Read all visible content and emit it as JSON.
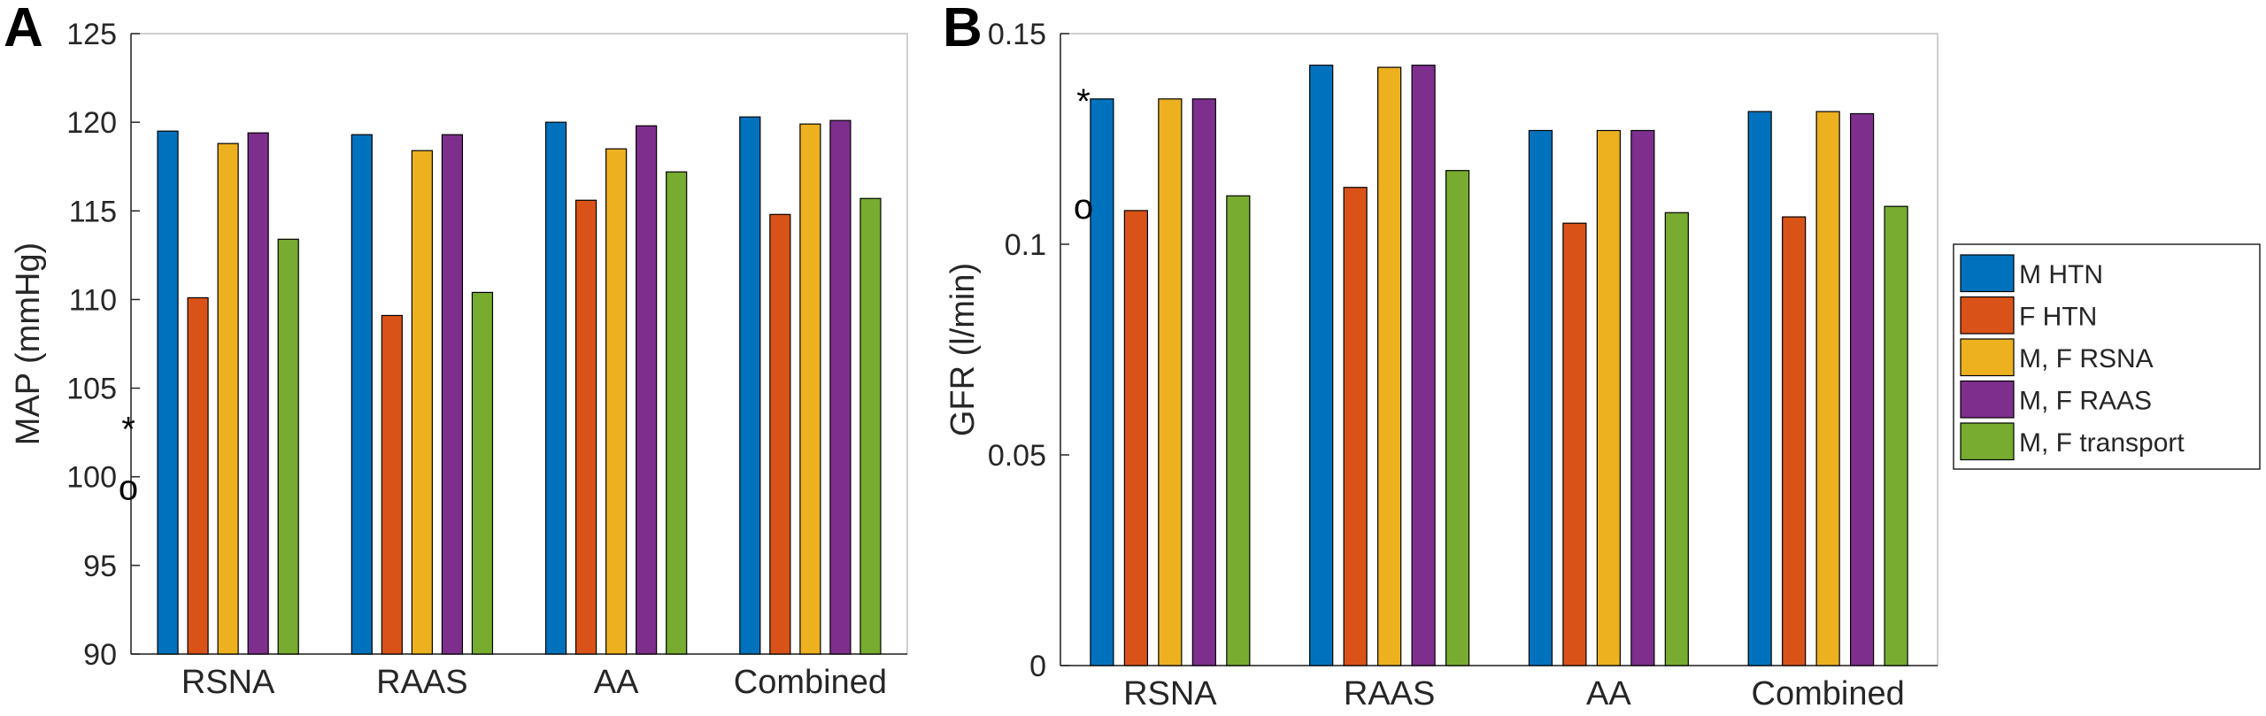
{
  "colors": {
    "series": [
      "#0072BD",
      "#D95319",
      "#EDB120",
      "#7E2F8E",
      "#77AC30"
    ],
    "axis": "#262626",
    "frame": "#bfbfbf"
  },
  "legend": {
    "entries": [
      "M HTN",
      "F HTN",
      "M, F RSNA",
      "M, F RAAS",
      "M, F transport"
    ],
    "placement": "right"
  },
  "markers": {
    "star": "*",
    "circle": "o"
  },
  "chart_data": [
    {
      "panel": "A",
      "type": "bar",
      "title": "",
      "xlabel": "",
      "ylabel": "MAP (mmHg)",
      "ylim": [
        90,
        125
      ],
      "yticks": [
        90,
        95,
        100,
        105,
        110,
        115,
        120,
        125
      ],
      "ytick_labels": [
        "90",
        "95",
        "100",
        "105",
        "110",
        "115",
        "120",
        "125"
      ],
      "categories": [
        "RSNA",
        "RAAS",
        "AA",
        "Combined"
      ],
      "series": [
        {
          "name": "M HTN",
          "values": [
            119.5,
            119.3,
            120.0,
            120.3
          ]
        },
        {
          "name": "F HTN",
          "values": [
            110.1,
            109.1,
            115.6,
            114.8
          ]
        },
        {
          "name": "M, F RSNA",
          "values": [
            118.8,
            118.4,
            118.5,
            119.9
          ]
        },
        {
          "name": "M, F RAAS",
          "values": [
            119.4,
            119.3,
            119.8,
            120.1
          ]
        },
        {
          "name": "M, F transport",
          "values": [
            113.4,
            110.4,
            117.2,
            115.7
          ]
        }
      ],
      "markers": [
        {
          "symbol": "*",
          "y": 102.7
        },
        {
          "symbol": "o",
          "y": 99.4
        }
      ]
    },
    {
      "panel": "B",
      "type": "bar",
      "title": "",
      "xlabel": "",
      "ylabel": "GFR (l/min)",
      "ylim": [
        0,
        0.15
      ],
      "yticks": [
        0,
        0.05,
        0.1,
        0.15
      ],
      "ytick_labels": [
        "0",
        "0.05",
        "0.1",
        "0.15"
      ],
      "categories": [
        "RSNA",
        "RAAS",
        "AA",
        "Combined"
      ],
      "series": [
        {
          "name": "M HTN",
          "values": [
            0.1345,
            0.1425,
            0.127,
            0.1315
          ]
        },
        {
          "name": "F HTN",
          "values": [
            0.108,
            0.1135,
            0.105,
            0.1065
          ]
        },
        {
          "name": "M, F RSNA",
          "values": [
            0.1345,
            0.142,
            0.127,
            0.1315
          ]
        },
        {
          "name": "M, F RAAS",
          "values": [
            0.1345,
            0.1425,
            0.127,
            0.131
          ]
        },
        {
          "name": "M, F transport",
          "values": [
            0.1115,
            0.1175,
            0.1075,
            0.109
          ]
        }
      ],
      "markers": [
        {
          "symbol": "*",
          "y": 0.134
        },
        {
          "symbol": "o",
          "y": 0.109
        }
      ]
    }
  ]
}
